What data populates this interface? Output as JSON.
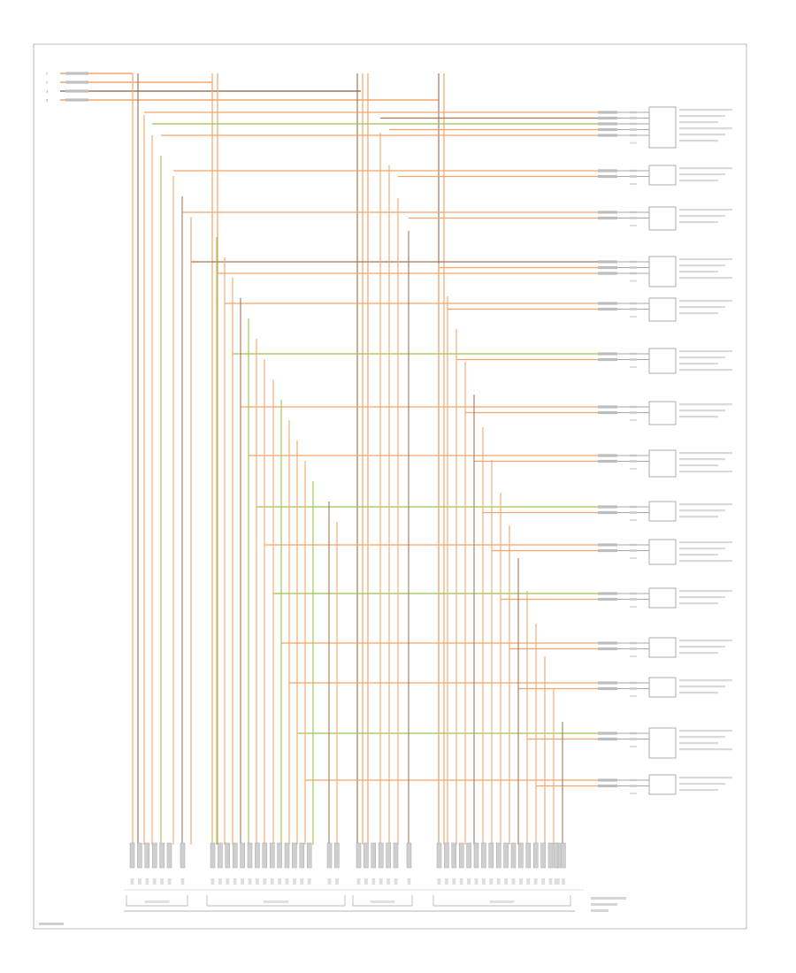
{
  "diagram": {
    "colors": {
      "orange": "#f5a56a",
      "brown": "#a0785a",
      "green": "#9ac54a",
      "frame": "#b8b8b8",
      "text": "#8a8a8a"
    },
    "ground_labels": [
      "1",
      "2",
      "3",
      "4"
    ],
    "footer_label": "",
    "connector_block_label": "",
    "modules": [
      {
        "id": "m1",
        "pins": [
          {
            "num": "",
            "wire": "orange"
          },
          {
            "num": "",
            "wire": "brown"
          },
          {
            "num": "",
            "wire": "green"
          },
          {
            "num": "",
            "wire": "orange"
          },
          {
            "num": "",
            "wire": "orange"
          }
        ],
        "name": ""
      },
      {
        "id": "m2",
        "pins": [
          {
            "num": "",
            "wire": "orange"
          },
          {
            "num": "",
            "wire": "orange"
          }
        ],
        "name": ""
      },
      {
        "id": "m3",
        "pins": [
          {
            "num": "",
            "wire": "orange"
          },
          {
            "num": "",
            "wire": "orange"
          }
        ],
        "name": ""
      },
      {
        "id": "m4",
        "pins": [
          {
            "num": "",
            "wire": "brown"
          },
          {
            "num": "",
            "wire": "orange"
          },
          {
            "num": "",
            "wire": "orange"
          }
        ],
        "name": ""
      },
      {
        "id": "m5",
        "pins": [
          {
            "num": "",
            "wire": "orange"
          },
          {
            "num": "",
            "wire": "orange"
          }
        ],
        "name": ""
      },
      {
        "id": "m6",
        "pins": [
          {
            "num": "",
            "wire": "green"
          },
          {
            "num": "",
            "wire": "orange"
          }
        ],
        "name": ""
      },
      {
        "id": "m7",
        "pins": [
          {
            "num": "",
            "wire": "orange"
          },
          {
            "num": "",
            "wire": "orange"
          }
        ],
        "name": ""
      },
      {
        "id": "m8",
        "pins": [
          {
            "num": "",
            "wire": "orange"
          },
          {
            "num": "",
            "wire": "orange"
          }
        ],
        "name": ""
      },
      {
        "id": "m9",
        "pins": [
          {
            "num": "",
            "wire": "green"
          },
          {
            "num": "",
            "wire": "orange"
          }
        ],
        "name": ""
      },
      {
        "id": "m10",
        "pins": [
          {
            "num": "",
            "wire": "orange"
          },
          {
            "num": "",
            "wire": "orange"
          }
        ],
        "name": ""
      },
      {
        "id": "m11",
        "pins": [
          {
            "num": "",
            "wire": "green"
          },
          {
            "num": "",
            "wire": "orange"
          }
        ],
        "name": ""
      },
      {
        "id": "m12",
        "pins": [
          {
            "num": "",
            "wire": "orange"
          },
          {
            "num": "",
            "wire": "orange"
          }
        ],
        "name": ""
      },
      {
        "id": "m13",
        "pins": [
          {
            "num": "",
            "wire": "orange"
          },
          {
            "num": "",
            "wire": "orange"
          }
        ],
        "name": ""
      },
      {
        "id": "m14",
        "pins": [
          {
            "num": "",
            "wire": "green"
          },
          {
            "num": "",
            "wire": "orange"
          }
        ],
        "name": ""
      },
      {
        "id": "m15",
        "pins": [
          {
            "num": "",
            "wire": "orange"
          },
          {
            "num": "",
            "wire": "orange"
          }
        ],
        "name": ""
      }
    ]
  }
}
